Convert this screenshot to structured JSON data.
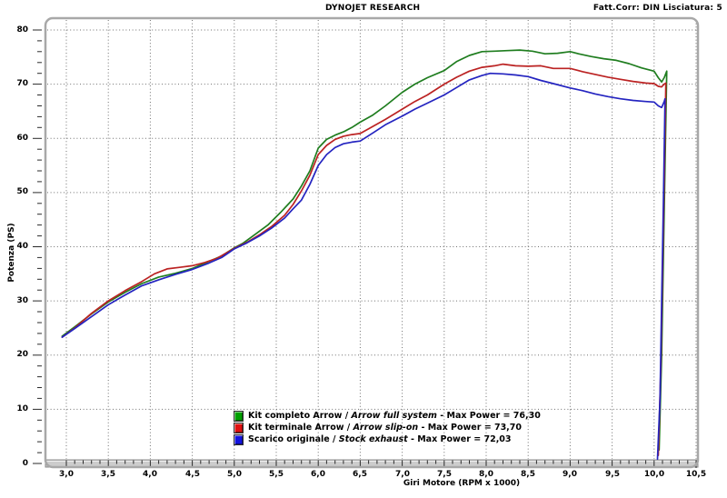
{
  "header": {
    "brand": "DYNOJET RESEARCH",
    "correction": "Fatt.Corr: DIN  Lisciatura: 5"
  },
  "chart_data": {
    "type": "line",
    "title": "",
    "xlabel": "Giri Motore (RPM x 1000)",
    "ylabel": "Potenza (PS)",
    "xlim": [
      3.0,
      10.5
    ],
    "ylim": [
      0,
      80
    ],
    "grid": "dotted",
    "legend_position": "bottom-center-inside",
    "x_ticks": [
      3.0,
      3.5,
      4.0,
      4.5,
      5.0,
      5.5,
      6.0,
      6.5,
      7.0,
      7.5,
      8.0,
      8.5,
      9.0,
      9.5,
      10.0,
      10.5
    ],
    "x_tick_labels": [
      "3,0",
      "3,5",
      "4,0",
      "4,5",
      "5,0",
      "5,5",
      "6,0",
      "6,5",
      "7,0",
      "7,5",
      "8,0",
      "8,5",
      "9,0",
      "9,5",
      "10,0",
      "10,5"
    ],
    "y_ticks": [
      0,
      10,
      20,
      30,
      40,
      50,
      60,
      70,
      80
    ],
    "x_minor_step": 0.1,
    "y_minor_step": 2,
    "series": [
      {
        "name": "Kit completo Arrow / Arrow full system",
        "max_power": "76,30",
        "color": "#1f7d1f",
        "points": [
          [
            2.95,
            23.5
          ],
          [
            3.1,
            25.2
          ],
          [
            3.3,
            27.6
          ],
          [
            3.5,
            29.8
          ],
          [
            3.7,
            31.6
          ],
          [
            3.9,
            33.2
          ],
          [
            4.1,
            34.4
          ],
          [
            4.3,
            35.1
          ],
          [
            4.5,
            36.0
          ],
          [
            4.7,
            37.3
          ],
          [
            4.85,
            38.3
          ],
          [
            5.0,
            39.8
          ],
          [
            5.1,
            40.6
          ],
          [
            5.25,
            42.3
          ],
          [
            5.4,
            44.0
          ],
          [
            5.55,
            46.3
          ],
          [
            5.7,
            48.8
          ],
          [
            5.8,
            51.2
          ],
          [
            5.9,
            54.0
          ],
          [
            6.0,
            58.2
          ],
          [
            6.1,
            59.8
          ],
          [
            6.2,
            60.6
          ],
          [
            6.3,
            61.2
          ],
          [
            6.4,
            62.0
          ],
          [
            6.5,
            63.0
          ],
          [
            6.65,
            64.3
          ],
          [
            6.8,
            66.0
          ],
          [
            7.0,
            68.5
          ],
          [
            7.15,
            70.0
          ],
          [
            7.3,
            71.2
          ],
          [
            7.5,
            72.5
          ],
          [
            7.65,
            74.2
          ],
          [
            7.8,
            75.3
          ],
          [
            7.95,
            76.0
          ],
          [
            8.1,
            76.1
          ],
          [
            8.25,
            76.2
          ],
          [
            8.4,
            76.3
          ],
          [
            8.55,
            76.1
          ],
          [
            8.7,
            75.6
          ],
          [
            8.85,
            75.7
          ],
          [
            9.0,
            76.0
          ],
          [
            9.1,
            75.6
          ],
          [
            9.25,
            75.1
          ],
          [
            9.4,
            74.7
          ],
          [
            9.55,
            74.4
          ],
          [
            9.7,
            73.8
          ],
          [
            9.85,
            73.0
          ],
          [
            10.0,
            72.4
          ],
          [
            10.05,
            71.2
          ],
          [
            10.09,
            70.4
          ],
          [
            10.12,
            71.2
          ],
          [
            10.15,
            72.4
          ],
          [
            10.13,
            55
          ],
          [
            10.11,
            38
          ],
          [
            10.09,
            20
          ],
          [
            10.06,
            2.5
          ]
        ]
      },
      {
        "name": "Kit terminale Arrow / Arrow slip-on",
        "max_power": "73,70",
        "color": "#bb2222",
        "points": [
          [
            2.95,
            23.3
          ],
          [
            3.1,
            25.0
          ],
          [
            3.3,
            27.7
          ],
          [
            3.5,
            30.0
          ],
          [
            3.7,
            31.9
          ],
          [
            3.9,
            33.6
          ],
          [
            4.05,
            35.0
          ],
          [
            4.2,
            35.9
          ],
          [
            4.35,
            36.2
          ],
          [
            4.5,
            36.5
          ],
          [
            4.65,
            37.1
          ],
          [
            4.8,
            37.9
          ],
          [
            5.0,
            39.7
          ],
          [
            5.15,
            40.8
          ],
          [
            5.3,
            42.2
          ],
          [
            5.45,
            43.8
          ],
          [
            5.6,
            45.8
          ],
          [
            5.7,
            47.8
          ],
          [
            5.8,
            50.3
          ],
          [
            5.9,
            53.2
          ],
          [
            6.0,
            57.0
          ],
          [
            6.1,
            58.7
          ],
          [
            6.2,
            59.8
          ],
          [
            6.3,
            60.4
          ],
          [
            6.4,
            60.7
          ],
          [
            6.5,
            60.9
          ],
          [
            6.65,
            62.2
          ],
          [
            6.8,
            63.5
          ],
          [
            7.0,
            65.4
          ],
          [
            7.15,
            66.8
          ],
          [
            7.3,
            68.0
          ],
          [
            7.5,
            70.0
          ],
          [
            7.65,
            71.3
          ],
          [
            7.8,
            72.4
          ],
          [
            7.95,
            73.1
          ],
          [
            8.1,
            73.4
          ],
          [
            8.2,
            73.7
          ],
          [
            8.35,
            73.4
          ],
          [
            8.5,
            73.3
          ],
          [
            8.65,
            73.4
          ],
          [
            8.8,
            72.9
          ],
          [
            9.0,
            72.9
          ],
          [
            9.15,
            72.3
          ],
          [
            9.3,
            71.8
          ],
          [
            9.45,
            71.3
          ],
          [
            9.6,
            70.9
          ],
          [
            9.75,
            70.5
          ],
          [
            9.9,
            70.2
          ],
          [
            10.0,
            70.1
          ],
          [
            10.05,
            69.6
          ],
          [
            10.09,
            69.5
          ],
          [
            10.12,
            70.0
          ],
          [
            10.14,
            70.2
          ],
          [
            10.12,
            52
          ],
          [
            10.1,
            35
          ],
          [
            10.08,
            18
          ],
          [
            10.05,
            1.5
          ]
        ]
      },
      {
        "name": "Scarico originale / Stock exhaust",
        "max_power": "72,03",
        "color": "#2424c0",
        "points": [
          [
            2.95,
            23.3
          ],
          [
            3.1,
            24.9
          ],
          [
            3.3,
            27.1
          ],
          [
            3.5,
            29.3
          ],
          [
            3.7,
            31.1
          ],
          [
            3.9,
            32.8
          ],
          [
            4.1,
            33.9
          ],
          [
            4.3,
            34.9
          ],
          [
            4.5,
            35.8
          ],
          [
            4.7,
            37.0
          ],
          [
            4.85,
            38.0
          ],
          [
            5.0,
            39.6
          ],
          [
            5.15,
            40.7
          ],
          [
            5.3,
            42.0
          ],
          [
            5.45,
            43.5
          ],
          [
            5.6,
            45.3
          ],
          [
            5.7,
            47.0
          ],
          [
            5.8,
            48.6
          ],
          [
            5.9,
            51.5
          ],
          [
            6.0,
            55.0
          ],
          [
            6.1,
            57.0
          ],
          [
            6.2,
            58.3
          ],
          [
            6.3,
            59.0
          ],
          [
            6.4,
            59.3
          ],
          [
            6.5,
            59.5
          ],
          [
            6.65,
            61.0
          ],
          [
            6.8,
            62.5
          ],
          [
            7.0,
            64.1
          ],
          [
            7.15,
            65.4
          ],
          [
            7.3,
            66.5
          ],
          [
            7.5,
            68.0
          ],
          [
            7.65,
            69.4
          ],
          [
            7.8,
            70.8
          ],
          [
            7.95,
            71.6
          ],
          [
            8.05,
            72.0
          ],
          [
            8.2,
            71.9
          ],
          [
            8.35,
            71.7
          ],
          [
            8.5,
            71.4
          ],
          [
            8.65,
            70.7
          ],
          [
            8.8,
            70.1
          ],
          [
            9.0,
            69.3
          ],
          [
            9.15,
            68.8
          ],
          [
            9.3,
            68.2
          ],
          [
            9.45,
            67.7
          ],
          [
            9.6,
            67.3
          ],
          [
            9.75,
            67.0
          ],
          [
            9.9,
            66.8
          ],
          [
            10.0,
            66.7
          ],
          [
            10.05,
            66.0
          ],
          [
            10.09,
            65.7
          ],
          [
            10.12,
            66.8
          ],
          [
            10.13,
            67.3
          ],
          [
            10.11,
            48
          ],
          [
            10.09,
            30
          ],
          [
            10.07,
            12
          ],
          [
            10.04,
            0.8
          ]
        ]
      }
    ]
  },
  "legend": {
    "items": [
      {
        "pre": "Kit completo Arrow / ",
        "italic": "Arrow full system",
        "post": " - Max Power = 76,30",
        "color": "#00a000"
      },
      {
        "pre": "Kit terminale Arrow / ",
        "italic": "Arrow slip-on",
        "post": " - Max Power = 73,70",
        "color": "#e01010"
      },
      {
        "pre": "Scarico originale / ",
        "italic": "Stock exhaust",
        "post": " - Max Power = 72,03",
        "color": "#1414e0"
      }
    ]
  }
}
